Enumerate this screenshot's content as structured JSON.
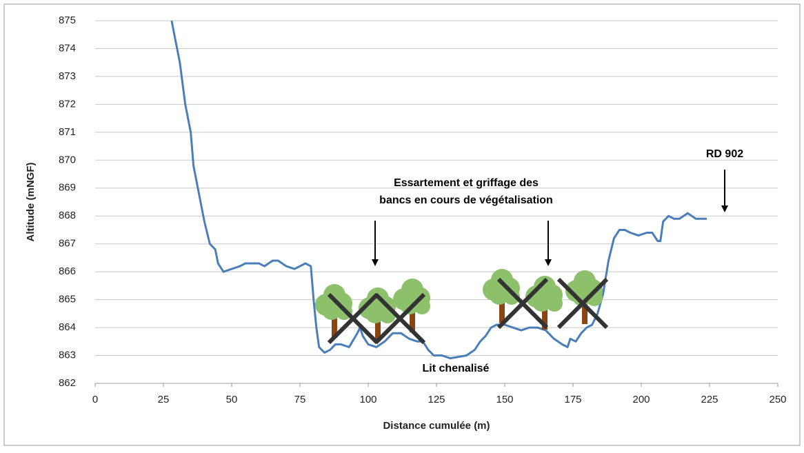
{
  "chart_data": {
    "type": "line",
    "xlabel": "Distance cumulée (m)",
    "ylabel": "Altitude (mNGF)",
    "x": [
      28,
      29,
      31,
      33,
      35,
      36,
      38,
      40,
      42,
      44,
      45,
      47,
      50,
      53,
      55,
      60,
      62,
      65,
      67,
      70,
      73,
      77,
      79,
      80,
      81,
      82,
      84,
      86,
      88,
      90,
      93,
      96,
      97,
      98,
      100,
      103,
      106,
      109,
      112,
      115,
      118,
      120,
      122,
      124,
      127,
      130,
      133,
      136,
      139,
      141,
      143,
      145,
      147,
      150,
      153,
      156,
      159,
      162,
      165,
      168,
      171,
      173,
      174,
      176,
      178,
      180,
      182,
      184,
      186,
      188,
      190,
      192,
      194,
      196,
      199,
      202,
      204,
      206,
      207,
      208,
      210,
      212,
      214,
      217,
      220,
      222,
      224
    ],
    "values": [
      875,
      874.5,
      873.5,
      872,
      871,
      869.8,
      868.8,
      867.8,
      867,
      866.8,
      866.3,
      866,
      866.1,
      866.2,
      866.3,
      866.3,
      866.2,
      866.4,
      866.4,
      866.2,
      866.1,
      866.3,
      866.2,
      865,
      864,
      863.3,
      863.1,
      863.2,
      863.4,
      863.4,
      863.3,
      863.8,
      864,
      863.7,
      863.4,
      863.3,
      863.5,
      863.8,
      863.8,
      863.6,
      863.5,
      863.5,
      863.2,
      863,
      863,
      862.9,
      862.95,
      863,
      863.2,
      863.5,
      863.7,
      864,
      864.1,
      864.1,
      864,
      863.9,
      864,
      864,
      863.9,
      863.6,
      863.4,
      863.3,
      863.6,
      863.5,
      863.8,
      864,
      864.1,
      864.5,
      865.2,
      866.4,
      867.2,
      867.5,
      867.5,
      867.4,
      867.3,
      867.4,
      867.4,
      867.1,
      867.1,
      867.8,
      868,
      867.9,
      867.9,
      868.1,
      867.9,
      867.9,
      867.9
    ],
    "color": "#4a7ebb",
    "xlim": [
      0,
      250
    ],
    "xticks": [
      0,
      25,
      50,
      75,
      100,
      125,
      150,
      175,
      200,
      225,
      250
    ],
    "ylim": [
      862,
      875
    ],
    "yticks": [
      862,
      863,
      864,
      865,
      866,
      867,
      868,
      869,
      870,
      871,
      872,
      873,
      874,
      875
    ],
    "grid": true,
    "annotations": [
      "RD 902",
      "Essartement et griffage des",
      "bancs en cours de végétalisation",
      "Lit chenalisé"
    ]
  }
}
